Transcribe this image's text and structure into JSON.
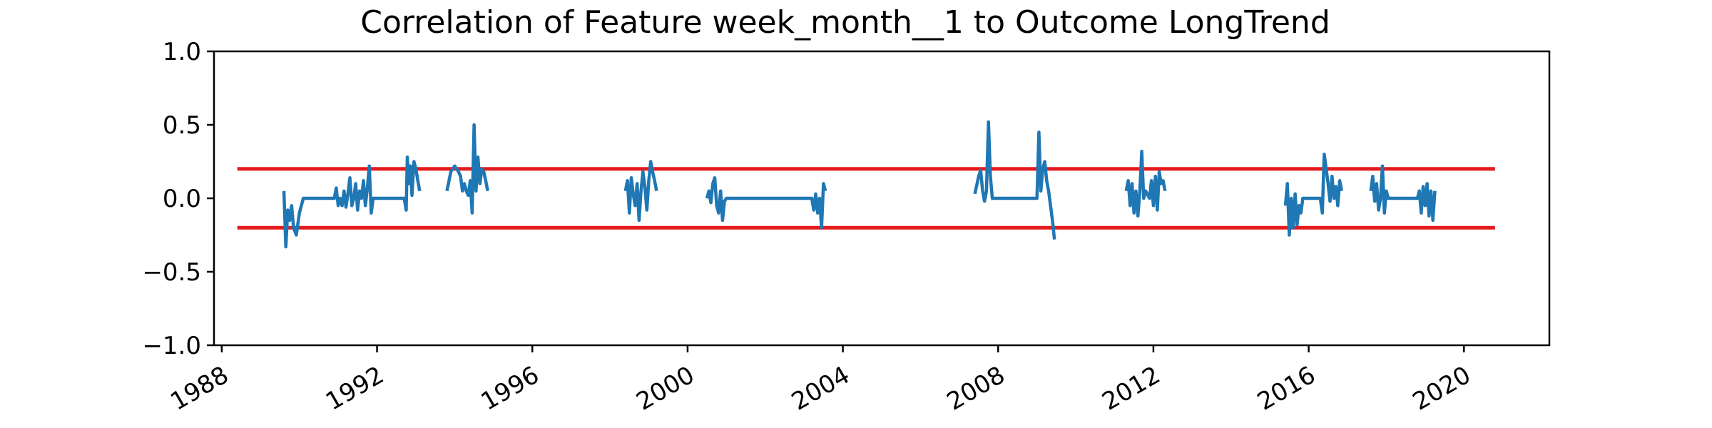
{
  "chart_data": {
    "type": "line",
    "title": "Correlation of Feature week_month__1 to Outcome LongTrend",
    "xlabel": "",
    "ylabel": "",
    "xlim": [
      1987.8,
      2022.2
    ],
    "ylim": [
      -1.0,
      1.0
    ],
    "grid": false,
    "x_ticks": [
      1988,
      1992,
      1996,
      2000,
      2004,
      2008,
      2012,
      2016,
      2020
    ],
    "x_tick_labels": [
      "1988",
      "1992",
      "1996",
      "2000",
      "2004",
      "2008",
      "2012",
      "2016",
      "2020"
    ],
    "y_ticks": [
      1.0,
      0.5,
      0.0,
      -0.5,
      -1.0
    ],
    "y_tick_labels": [
      "1.0",
      "0.5",
      "0.0",
      "−0.5",
      "−1.0"
    ],
    "thresholds": [
      {
        "y": 0.2,
        "x_range": [
          1988.4,
          2020.8
        ],
        "color": "#e41a1c"
      },
      {
        "y": -0.2,
        "x_range": [
          1988.4,
          2020.8
        ],
        "color": "#e41a1c"
      }
    ],
    "series": [
      {
        "color": "#1f77b4",
        "segments": [
          [
            [
              1989.6,
              0.05
            ],
            [
              1989.65,
              -0.33
            ],
            [
              1989.7,
              -0.08
            ],
            [
              1989.75,
              -0.15
            ],
            [
              1989.8,
              -0.05
            ],
            [
              1989.85,
              -0.2
            ],
            [
              1989.92,
              -0.25
            ],
            [
              1990.0,
              -0.1
            ],
            [
              1990.1,
              0.0
            ],
            [
              1990.9,
              0.0
            ],
            [
              1990.95,
              0.07
            ],
            [
              1991.0,
              -0.05
            ],
            [
              1991.05,
              0.0
            ],
            [
              1991.1,
              -0.05
            ],
            [
              1991.15,
              0.05
            ],
            [
              1991.2,
              -0.06
            ],
            [
              1991.25,
              0.03
            ],
            [
              1991.3,
              0.14
            ],
            [
              1991.35,
              -0.05
            ],
            [
              1991.4,
              0.0
            ],
            [
              1991.45,
              0.1
            ],
            [
              1991.5,
              -0.08
            ],
            [
              1991.55,
              0.05
            ],
            [
              1991.6,
              0.0
            ],
            [
              1991.65,
              0.12
            ],
            [
              1991.7,
              -0.05
            ],
            [
              1991.75,
              0.07
            ],
            [
              1991.8,
              0.22
            ],
            [
              1991.85,
              -0.1
            ],
            [
              1991.9,
              0.0
            ],
            [
              1992.7,
              0.0
            ],
            [
              1992.75,
              -0.08
            ],
            [
              1992.78,
              0.28
            ],
            [
              1992.82,
              0.1
            ],
            [
              1992.86,
              0.22
            ],
            [
              1992.9,
              0.02
            ],
            [
              1992.95,
              0.25
            ],
            [
              1993.0,
              0.2
            ],
            [
              1993.05,
              0.12
            ],
            [
              1993.1,
              0.05
            ]
          ],
          [
            [
              1993.8,
              0.05
            ],
            [
              1993.9,
              0.18
            ],
            [
              1994.0,
              0.22
            ],
            [
              1994.1,
              0.18
            ],
            [
              1994.15,
              0.15
            ],
            [
              1994.2,
              0.05
            ],
            [
              1994.25,
              0.1
            ],
            [
              1994.3,
              0.05
            ],
            [
              1994.35,
              0.02
            ],
            [
              1994.4,
              0.12
            ],
            [
              1994.45,
              -0.1
            ],
            [
              1994.5,
              0.5
            ],
            [
              1994.55,
              0.05
            ],
            [
              1994.6,
              0.28
            ],
            [
              1994.65,
              0.1
            ],
            [
              1994.7,
              0.2
            ],
            [
              1994.75,
              0.18
            ],
            [
              1994.8,
              0.12
            ],
            [
              1994.85,
              0.05
            ]
          ],
          [
            [
              1998.4,
              0.05
            ],
            [
              1998.45,
              0.12
            ],
            [
              1998.5,
              -0.1
            ],
            [
              1998.55,
              0.14
            ],
            [
              1998.6,
              0.03
            ],
            [
              1998.65,
              -0.05
            ],
            [
              1998.7,
              0.1
            ],
            [
              1998.75,
              -0.15
            ],
            [
              1998.8,
              0.05
            ],
            [
              1998.85,
              0.18
            ],
            [
              1998.9,
              0.08
            ],
            [
              1998.95,
              -0.08
            ],
            [
              1999.0,
              0.12
            ],
            [
              1999.05,
              0.25
            ],
            [
              1999.1,
              0.18
            ],
            [
              1999.15,
              0.12
            ],
            [
              1999.2,
              0.05
            ]
          ],
          [
            [
              2000.5,
              0.0
            ],
            [
              2000.55,
              0.05
            ],
            [
              2000.6,
              -0.03
            ],
            [
              2000.65,
              0.1
            ],
            [
              2000.7,
              0.14
            ],
            [
              2000.75,
              -0.05
            ],
            [
              2000.8,
              -0.1
            ],
            [
              2000.85,
              0.05
            ],
            [
              2000.9,
              -0.15
            ],
            [
              2000.95,
              -0.02
            ],
            [
              2001.0,
              0.0
            ],
            [
              2003.2,
              0.0
            ],
            [
              2003.25,
              -0.08
            ],
            [
              2003.3,
              0.03
            ],
            [
              2003.35,
              -0.1
            ],
            [
              2003.4,
              0.0
            ],
            [
              2003.45,
              -0.2
            ],
            [
              2003.5,
              0.1
            ],
            [
              2003.55,
              0.05
            ]
          ],
          [
            [
              2007.4,
              0.03
            ],
            [
              2007.5,
              0.15
            ],
            [
              2007.55,
              0.19
            ],
            [
              2007.6,
              0.05
            ],
            [
              2007.65,
              -0.02
            ],
            [
              2007.7,
              0.05
            ],
            [
              2007.75,
              0.52
            ],
            [
              2007.8,
              0.15
            ],
            [
              2007.85,
              0.0
            ],
            [
              2009.0,
              0.0
            ],
            [
              2009.05,
              0.45
            ],
            [
              2009.1,
              0.05
            ],
            [
              2009.15,
              0.2
            ],
            [
              2009.2,
              0.25
            ],
            [
              2009.25,
              0.12
            ],
            [
              2009.3,
              0.05
            ],
            [
              2009.35,
              -0.05
            ],
            [
              2009.4,
              -0.15
            ],
            [
              2009.45,
              -0.28
            ]
          ],
          [
            [
              2011.3,
              0.05
            ],
            [
              2011.35,
              0.12
            ],
            [
              2011.4,
              -0.05
            ],
            [
              2011.45,
              0.1
            ],
            [
              2011.5,
              -0.1
            ],
            [
              2011.55,
              0.05
            ],
            [
              2011.6,
              -0.12
            ],
            [
              2011.65,
              0.05
            ],
            [
              2011.7,
              0.32
            ],
            [
              2011.75,
              0.0
            ],
            [
              2011.8,
              0.05
            ],
            [
              2011.9,
              0.0
            ],
            [
              2011.95,
              0.12
            ],
            [
              2012.0,
              -0.05
            ],
            [
              2012.05,
              0.15
            ],
            [
              2012.1,
              -0.08
            ],
            [
              2012.15,
              0.18
            ],
            [
              2012.2,
              0.1
            ],
            [
              2012.25,
              0.12
            ],
            [
              2012.3,
              0.05
            ]
          ],
          [
            [
              2015.4,
              -0.05
            ],
            [
              2015.45,
              0.1
            ],
            [
              2015.5,
              -0.25
            ],
            [
              2015.55,
              0.0
            ],
            [
              2015.6,
              -0.2
            ],
            [
              2015.65,
              0.03
            ],
            [
              2015.7,
              -0.18
            ],
            [
              2015.75,
              -0.05
            ],
            [
              2015.8,
              -0.1
            ],
            [
              2015.85,
              0.0
            ],
            [
              2016.3,
              0.0
            ],
            [
              2016.35,
              -0.1
            ],
            [
              2016.4,
              0.3
            ],
            [
              2016.45,
              0.2
            ],
            [
              2016.5,
              0.1
            ],
            [
              2016.55,
              -0.02
            ],
            [
              2016.6,
              0.15
            ],
            [
              2016.65,
              0.0
            ],
            [
              2016.7,
              0.08
            ],
            [
              2016.75,
              -0.05
            ],
            [
              2016.8,
              0.12
            ],
            [
              2016.85,
              0.05
            ]
          ],
          [
            [
              2017.6,
              0.05
            ],
            [
              2017.65,
              0.15
            ],
            [
              2017.7,
              -0.02
            ],
            [
              2017.75,
              0.1
            ],
            [
              2017.8,
              -0.08
            ],
            [
              2017.85,
              0.0
            ],
            [
              2017.9,
              0.22
            ],
            [
              2017.95,
              -0.1
            ],
            [
              2018.0,
              0.05
            ],
            [
              2018.05,
              0.0
            ],
            [
              2018.8,
              0.0
            ],
            [
              2018.85,
              0.05
            ],
            [
              2018.9,
              -0.1
            ],
            [
              2018.95,
              0.08
            ],
            [
              2019.0,
              -0.05
            ],
            [
              2019.05,
              0.1
            ],
            [
              2019.1,
              -0.12
            ],
            [
              2019.15,
              0.05
            ],
            [
              2019.2,
              -0.15
            ],
            [
              2019.25,
              0.05
            ]
          ]
        ]
      }
    ]
  }
}
